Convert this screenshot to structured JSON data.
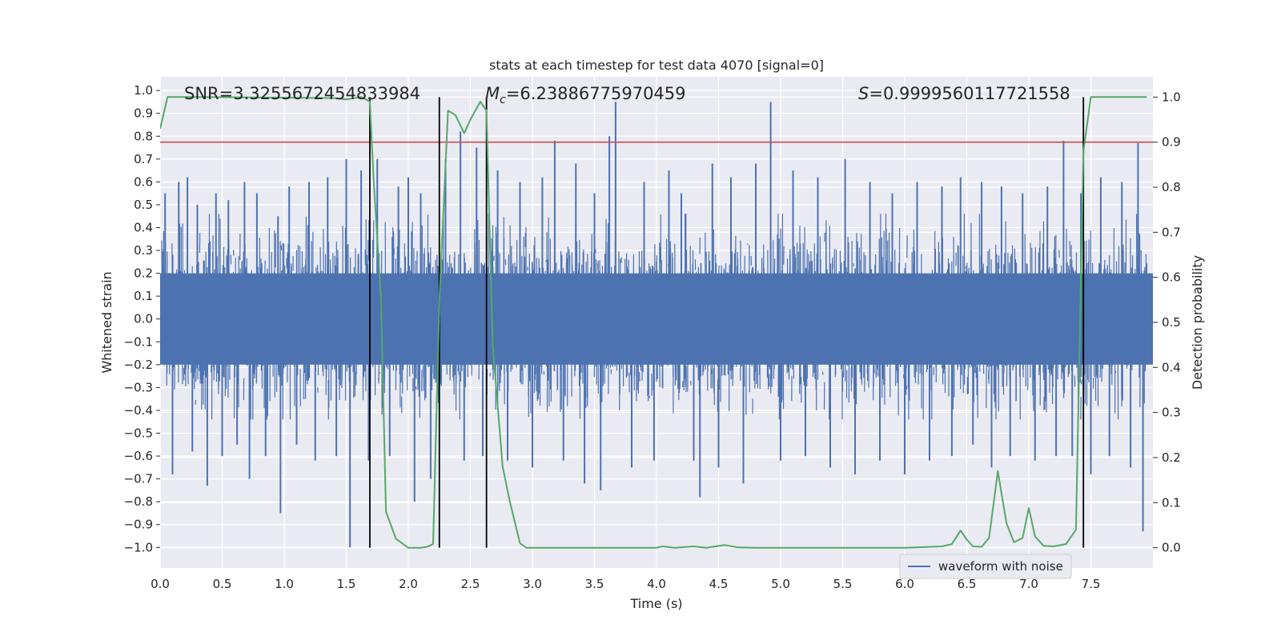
{
  "chart_data": {
    "type": "line",
    "title": "stats at each timestep for test data 4070 [signal=0]",
    "xlabel": "Time (s)",
    "ylabel": "Whitened strain",
    "y2label": "Detection probability",
    "xlim": [
      0.0,
      8.0
    ],
    "ylim": [
      -1.09,
      1.06
    ],
    "y2lim": [
      -0.045,
      1.045
    ],
    "x_ticks": [
      0.0,
      0.5,
      1.0,
      1.5,
      2.0,
      2.5,
      3.0,
      3.5,
      4.0,
      4.5,
      5.0,
      5.5,
      6.0,
      6.5,
      7.0,
      7.5
    ],
    "x_tick_labels": [
      "0.0",
      "0.5",
      "1.0",
      "1.5",
      "2.0",
      "2.5",
      "3.0",
      "3.5",
      "4.0",
      "4.5",
      "5.0",
      "5.5",
      "6.0",
      "6.5",
      "7.0",
      "7.5"
    ],
    "y_ticks": [
      1.0,
      0.9,
      0.8,
      0.7,
      0.6,
      0.5,
      0.4,
      0.3,
      0.2,
      0.1,
      0.0,
      -0.1,
      -0.2,
      -0.3,
      -0.4,
      -0.5,
      -0.6,
      -0.7,
      -0.8,
      -0.9,
      -1.0
    ],
    "y_tick_labels": [
      "1.0",
      "0.9",
      "0.8",
      "0.7",
      "0.6",
      "0.5",
      "0.4",
      "0.3",
      "0.2",
      "0.1",
      "0.0",
      "−0.1",
      "−0.2",
      "−0.3",
      "−0.4",
      "−0.5",
      "−0.6",
      "−0.7",
      "−0.8",
      "−0.9",
      "−1.0"
    ],
    "y2_ticks": [
      1.0,
      0.9,
      0.8,
      0.7,
      0.6,
      0.5,
      0.4,
      0.3,
      0.2,
      0.1,
      0.0
    ],
    "y2_tick_labels": [
      "1.0",
      "0.9",
      "0.8",
      "0.7",
      "0.6",
      "0.5",
      "0.4",
      "0.3",
      "0.2",
      "0.1",
      "0.0"
    ],
    "grid": true,
    "annotations": {
      "snr": "SNR=3.3255672454833984",
      "mc_symbol": "M",
      "mc_sub": "c",
      "mc_value": "=6.23886775970459",
      "s_symbol": "S",
      "s_value": "=0.9999560117721558"
    },
    "threshold": {
      "axis": "y2",
      "value": 0.9,
      "color": "#c44e52"
    },
    "vlines": {
      "x": [
        1.69,
        2.25,
        2.63,
        7.44
      ],
      "y2_range": [
        0.0,
        1.0
      ],
      "color": "#000000"
    },
    "series": [
      {
        "name": "waveform with noise",
        "axis": "y",
        "color": "#4c72b0",
        "dense_band": [
          -0.2,
          0.2
        ],
        "x": [
          0.04,
          0.1,
          0.15,
          0.22,
          0.26,
          0.3,
          0.38,
          0.45,
          0.5,
          0.55,
          0.62,
          0.68,
          0.72,
          0.78,
          0.85,
          0.95,
          0.97,
          1.04,
          1.1,
          1.2,
          1.25,
          1.35,
          1.42,
          1.5,
          1.53,
          1.62,
          1.68,
          1.75,
          1.85,
          1.92,
          2.0,
          2.05,
          2.1,
          2.18,
          2.3,
          2.42,
          2.45,
          2.55,
          2.6,
          2.72,
          2.8,
          2.9,
          3.0,
          3.08,
          3.18,
          3.25,
          3.35,
          3.42,
          3.5,
          3.55,
          3.62,
          3.67,
          3.8,
          3.9,
          3.98,
          4.1,
          4.2,
          4.3,
          4.35,
          4.45,
          4.5,
          4.6,
          4.7,
          4.8,
          4.92,
          5.0,
          5.1,
          5.2,
          5.3,
          5.4,
          5.52,
          5.6,
          5.72,
          5.8,
          5.9,
          6.0,
          6.1,
          6.2,
          6.3,
          6.38,
          6.45,
          6.55,
          6.62,
          6.7,
          6.78,
          6.85,
          6.95,
          7.05,
          7.15,
          7.22,
          7.28,
          7.35,
          7.42,
          7.5,
          7.58,
          7.65,
          7.75,
          7.82,
          7.88,
          7.92
        ],
        "values": [
          0.55,
          -0.68,
          0.6,
          0.62,
          -0.58,
          0.5,
          -0.73,
          0.55,
          -0.6,
          0.52,
          -0.55,
          0.6,
          -0.7,
          0.55,
          -0.6,
          0.45,
          -0.85,
          0.58,
          -0.55,
          0.6,
          -0.62,
          0.62,
          -0.6,
          0.7,
          -1.0,
          0.65,
          -0.62,
          0.7,
          -0.6,
          0.58,
          0.62,
          -0.8,
          0.55,
          -0.7,
          0.7,
          0.82,
          -0.62,
          0.75,
          -0.6,
          0.65,
          -0.62,
          0.6,
          -0.65,
          0.62,
          0.78,
          -0.62,
          0.68,
          -0.72,
          0.55,
          -0.75,
          0.8,
          0.95,
          -0.65,
          0.6,
          -0.62,
          0.65,
          0.55,
          -0.62,
          -0.78,
          0.68,
          -0.65,
          0.62,
          -0.72,
          0.68,
          0.95,
          -0.62,
          0.65,
          -0.6,
          0.62,
          -0.65,
          0.7,
          -0.68,
          0.6,
          -0.62,
          0.55,
          -0.68,
          0.6,
          -0.62,
          0.58,
          -0.6,
          0.62,
          -0.55,
          0.6,
          -0.65,
          0.58,
          -0.6,
          0.55,
          -0.62,
          0.58,
          -0.6,
          0.78,
          -0.6,
          0.55,
          -0.68,
          0.62,
          -0.6,
          0.6,
          -0.65,
          0.77,
          -0.93
        ]
      },
      {
        "name": "detection probability",
        "axis": "y2",
        "color": "#55a868",
        "in_legend": false,
        "x": [
          0.0,
          0.06,
          0.3,
          1.4,
          1.5,
          1.62,
          1.69,
          1.72,
          1.78,
          1.82,
          1.9,
          2.0,
          2.1,
          2.15,
          2.2,
          2.25,
          2.32,
          2.38,
          2.45,
          2.5,
          2.58,
          2.63,
          2.68,
          2.76,
          2.82,
          2.9,
          2.95,
          3.0,
          3.2,
          4.0,
          4.05,
          4.15,
          4.25,
          4.3,
          4.4,
          4.55,
          4.65,
          4.8,
          5.5,
          6.0,
          6.3,
          6.38,
          6.45,
          6.5,
          6.55,
          6.62,
          6.68,
          6.75,
          6.82,
          6.88,
          6.95,
          7.0,
          7.05,
          7.12,
          7.2,
          7.3,
          7.38,
          7.44,
          7.5,
          7.6,
          7.8,
          7.95
        ],
        "values": [
          0.93,
          1.0,
          1.0,
          0.998,
          0.995,
          1.0,
          0.99,
          0.82,
          0.55,
          0.08,
          0.02,
          0.0,
          0.0,
          0.002,
          0.008,
          0.55,
          0.97,
          0.96,
          0.92,
          0.95,
          0.99,
          0.97,
          0.45,
          0.18,
          0.1,
          0.01,
          0.0,
          0.0,
          0.0,
          0.0,
          0.003,
          0.0,
          0.002,
          0.003,
          0.0,
          0.006,
          0.001,
          0.0,
          0.0,
          0.0,
          0.003,
          0.008,
          0.038,
          0.018,
          0.003,
          0.002,
          0.022,
          0.17,
          0.055,
          0.012,
          0.022,
          0.088,
          0.025,
          0.004,
          0.003,
          0.008,
          0.04,
          0.88,
          1.0,
          1.0,
          1.0,
          1.0
        ]
      }
    ],
    "legend": {
      "entries": [
        "waveform with noise"
      ],
      "placement": "lower-right"
    }
  }
}
